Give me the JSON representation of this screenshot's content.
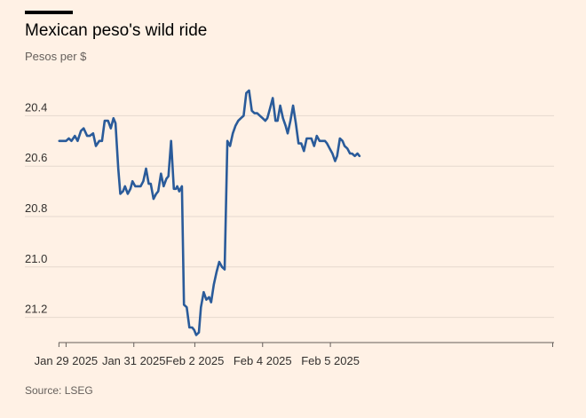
{
  "title": "Mexican peso's wild ride",
  "subtitle": "Pesos per $",
  "source": "Source: LSEG",
  "colors": {
    "background": "#fff1e5",
    "line": "#2a5b9a",
    "grid": "#e6d9ce",
    "axis": "#66605c",
    "text": "#33302e"
  },
  "chart_data": {
    "type": "line",
    "title": "Mexican peso's wild ride",
    "ylabel": "Pesos per $",
    "y_inverted": true,
    "ylim": [
      21.3,
      20.3
    ],
    "yticks": [
      20.4,
      20.6,
      20.8,
      21.0,
      21.2
    ],
    "ytick_labels": [
      "20.4",
      "20.6",
      "20.8",
      "21.0",
      "21.2"
    ],
    "grid": "horizontal",
    "xlim": [
      -0.01,
      7.3
    ],
    "xticks": [
      0.1,
      1.1,
      2.0,
      3.0,
      4.0
    ],
    "xtick_labels": [
      "Jan 29 2025",
      "Jan 31 2025",
      "Feb 2 2025",
      "Feb 4 2025",
      "Feb 5 2025"
    ],
    "series": [
      {
        "color": "#2a5b9a",
        "x": [
          0.0,
          0.03,
          0.06,
          0.1,
          0.14,
          0.18,
          0.23,
          0.27,
          0.32,
          0.36,
          0.41,
          0.45,
          0.5,
          0.54,
          0.59,
          0.63,
          0.67,
          0.72,
          0.76,
          0.8,
          0.83,
          0.87,
          0.9,
          0.94,
          0.97,
          1.01,
          1.05,
          1.08,
          1.12,
          1.16,
          1.2,
          1.24,
          1.28,
          1.32,
          1.35,
          1.39,
          1.43,
          1.46,
          1.5,
          1.54,
          1.58,
          1.61,
          1.65,
          1.69,
          1.72,
          1.74,
          1.77,
          1.81,
          1.84,
          1.88,
          1.92,
          1.96,
          1.99,
          2.02,
          2.06,
          2.09,
          2.13,
          2.17,
          2.21,
          2.24,
          2.28,
          2.32,
          2.36,
          2.4,
          2.44,
          2.48,
          2.52,
          2.56,
          2.6,
          2.64,
          2.68,
          2.72,
          2.76,
          2.8,
          2.84,
          2.88,
          2.92,
          2.96,
          3.0,
          3.04,
          3.07,
          3.11,
          3.15,
          3.19,
          3.22,
          3.26,
          3.3,
          3.34,
          3.37,
          3.41,
          3.45,
          3.49,
          3.53,
          3.57,
          3.61,
          3.65,
          3.69,
          3.72,
          3.76,
          3.8,
          3.84,
          3.88,
          3.92,
          3.95,
          3.99,
          4.03,
          4.07,
          4.1,
          4.14,
          4.18,
          4.21,
          4.25,
          4.29,
          4.32,
          4.36,
          4.4,
          4.43
        ],
        "values": [
          20.5,
          20.5,
          20.5,
          20.5,
          20.49,
          20.5,
          20.48,
          20.5,
          20.46,
          20.45,
          20.48,
          20.48,
          20.47,
          20.52,
          20.5,
          20.5,
          20.42,
          20.42,
          20.45,
          20.41,
          20.43,
          20.61,
          20.71,
          20.7,
          20.68,
          20.71,
          20.69,
          20.66,
          20.68,
          20.68,
          20.68,
          20.66,
          20.61,
          20.67,
          20.67,
          20.73,
          20.71,
          20.7,
          20.63,
          20.68,
          20.65,
          20.64,
          20.5,
          20.69,
          20.69,
          20.68,
          20.7,
          20.68,
          21.15,
          21.16,
          21.24,
          21.24,
          21.25,
          21.27,
          21.26,
          21.16,
          21.1,
          21.13,
          21.12,
          21.14,
          21.07,
          21.02,
          20.98,
          21.0,
          21.01,
          20.5,
          20.52,
          20.47,
          20.44,
          20.42,
          20.41,
          20.4,
          20.31,
          20.3,
          20.38,
          20.39,
          20.39,
          20.4,
          20.41,
          20.42,
          20.41,
          20.37,
          20.33,
          20.42,
          20.42,
          20.36,
          20.41,
          20.44,
          20.47,
          20.42,
          20.36,
          20.43,
          20.51,
          20.51,
          20.54,
          20.49,
          20.49,
          20.49,
          20.52,
          20.48,
          20.5,
          20.5,
          20.5,
          20.51,
          20.53,
          20.55,
          20.58,
          20.56,
          20.49,
          20.5,
          20.52,
          20.53,
          20.55,
          20.55,
          20.56,
          20.55,
          20.56
        ]
      }
    ]
  }
}
